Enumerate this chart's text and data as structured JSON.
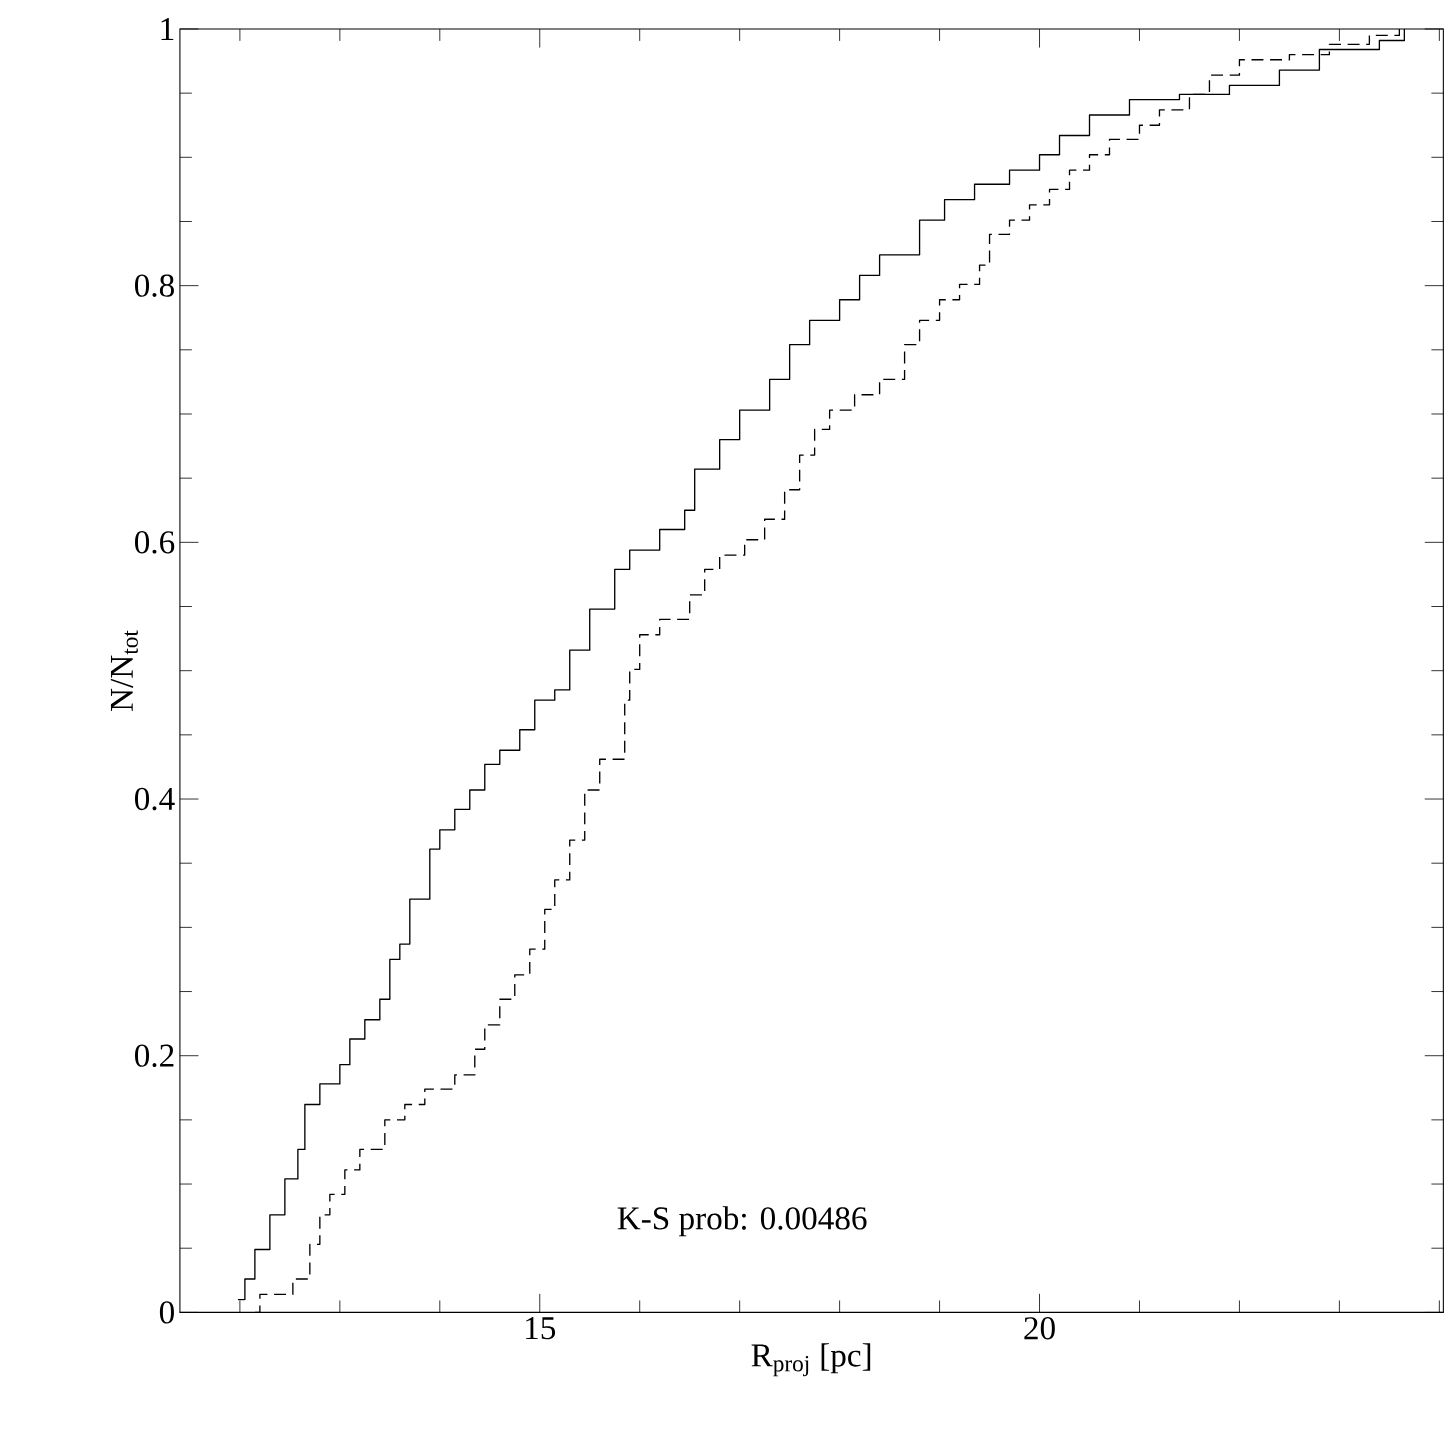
{
  "chart_data": {
    "type": "step",
    "xlabel": "R$_{proj}$ [pc]",
    "ylabel": "N/N$_{tot}$",
    "annotations": [
      "K-S prob: 0.00486"
    ],
    "xlim": [
      11.4,
      24.04
    ],
    "ylim": [
      0,
      1
    ],
    "xticks": [
      {
        "value": 12,
        "label": null
      },
      {
        "value": 13,
        "label": null
      },
      {
        "value": 14,
        "label": null
      },
      15,
      {
        "value": 16,
        "label": null
      },
      {
        "value": 17,
        "label": null
      },
      {
        "value": 18,
        "label": null
      },
      {
        "value": 19,
        "label": null
      },
      20,
      {
        "value": 21,
        "label": null
      },
      {
        "value": 22,
        "label": null
      },
      {
        "value": 23,
        "label": null
      },
      {
        "value": 24,
        "label": null
      }
    ],
    "yticks": [
      0,
      {
        "value": 0.05,
        "label": null
      },
      {
        "value": 0.1,
        "label": null
      },
      {
        "value": 0.15,
        "label": null
      },
      0.2,
      {
        "value": 0.25,
        "label": null
      },
      {
        "value": 0.3,
        "label": null
      },
      {
        "value": 0.35,
        "label": null
      },
      0.4,
      {
        "value": 0.45,
        "label": null
      },
      {
        "value": 0.5,
        "label": null
      },
      {
        "value": 0.55,
        "label": null
      },
      0.6,
      {
        "value": 0.65,
        "label": null
      },
      {
        "value": 0.7,
        "label": null
      },
      {
        "value": 0.75,
        "label": null
      },
      0.8,
      {
        "value": 0.85,
        "label": null
      },
      {
        "value": 0.9,
        "label": null
      },
      {
        "value": 0.95,
        "label": null
      },
      1
    ],
    "series": [
      {
        "color": "#000000",
        "line_style": "solid",
        "x": [
          11.98,
          12.05,
          12.15,
          12.3,
          12.45,
          12.58,
          12.65,
          12.8,
          13.0,
          13.1,
          13.25,
          13.4,
          13.5,
          13.6,
          13.7,
          13.9,
          14.0,
          14.15,
          14.3,
          14.45,
          14.6,
          14.8,
          14.95,
          15.15,
          15.3,
          15.5,
          15.75,
          15.9,
          16.2,
          16.45,
          16.55,
          16.8,
          17.0,
          17.3,
          17.5,
          17.7,
          18.0,
          18.2,
          18.4,
          18.8,
          19.05,
          19.35,
          19.7,
          20.0,
          20.2,
          20.5,
          20.9,
          21.4,
          21.9,
          22.4,
          22.8,
          23.4,
          23.65
        ],
        "values": [
          0.01,
          0.026,
          0.049,
          0.076,
          0.104,
          0.127,
          0.162,
          0.178,
          0.193,
          0.213,
          0.228,
          0.244,
          0.275,
          0.287,
          0.322,
          0.361,
          0.376,
          0.392,
          0.407,
          0.427,
          0.438,
          0.454,
          0.477,
          0.485,
          0.516,
          0.548,
          0.579,
          0.594,
          0.61,
          0.625,
          0.657,
          0.68,
          0.703,
          0.727,
          0.754,
          0.773,
          0.789,
          0.808,
          0.824,
          0.851,
          0.867,
          0.879,
          0.89,
          0.902,
          0.917,
          0.933,
          0.945,
          0.949,
          0.956,
          0.968,
          0.984,
          0.991,
          1.0
        ]
      },
      {
        "color": "#000000",
        "line_style": "dashed",
        "x": [
          12.15,
          12.2,
          12.53,
          12.7,
          12.8,
          12.9,
          13.05,
          13.2,
          13.45,
          13.65,
          13.85,
          14.15,
          14.35,
          14.45,
          14.6,
          14.75,
          14.9,
          15.05,
          15.15,
          15.3,
          15.45,
          15.6,
          15.85,
          15.9,
          16.0,
          16.2,
          16.5,
          16.65,
          16.8,
          17.05,
          17.25,
          17.45,
          17.6,
          17.75,
          17.9,
          18.15,
          18.4,
          18.65,
          18.8,
          19.0,
          19.2,
          19.4,
          19.5,
          19.7,
          19.9,
          20.1,
          20.3,
          20.5,
          20.7,
          21.0,
          21.2,
          21.5,
          21.7,
          22.0,
          22.5,
          22.9,
          23.3,
          23.6
        ],
        "values": [
          0,
          0.014,
          0.026,
          0.053,
          0.076,
          0.092,
          0.111,
          0.127,
          0.15,
          0.162,
          0.174,
          0.185,
          0.205,
          0.224,
          0.244,
          0.263,
          0.283,
          0.314,
          0.337,
          0.368,
          0.407,
          0.431,
          0.477,
          0.501,
          0.528,
          0.54,
          0.559,
          0.579,
          0.59,
          0.602,
          0.618,
          0.641,
          0.668,
          0.688,
          0.703,
          0.715,
          0.727,
          0.754,
          0.773,
          0.789,
          0.801,
          0.816,
          0.84,
          0.851,
          0.863,
          0.875,
          0.89,
          0.902,
          0.914,
          0.925,
          0.937,
          0.949,
          0.964,
          0.976,
          0.98,
          0.988,
          0.995,
          1.0
        ]
      }
    ]
  }
}
